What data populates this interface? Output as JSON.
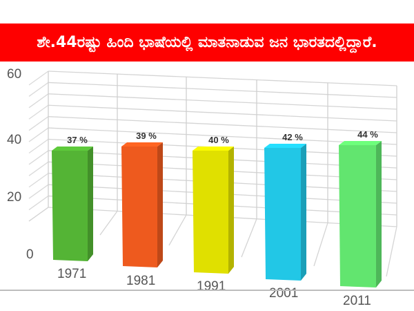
{
  "title": "ಶೇ.44ರಷ್ಟು ಹಿಂದಿ ಭಾಷೆಯಲ್ಲಿ ಮಾತನಾಡುವ ಜನ ಭಾರತದಲ್ಲಿದ್ದಾರೆ.",
  "chart_data": {
    "type": "bar",
    "title": "ಶೇ.44ರಷ್ಟು ಹಿಂದಿ ಭಾಷೆಯಲ್ಲಿ ಮಾತನಾಡುವ ಜನ ಭಾರತದಲ್ಲಿದ್ದಾರೆ.",
    "categories": [
      "1971",
      "1981",
      "1991",
      "2001",
      "2011"
    ],
    "values": [
      37,
      39,
      40,
      42,
      44
    ],
    "data_labels": [
      "37 %",
      "39 %",
      "40 %",
      "42 %",
      "44 %"
    ],
    "colors": [
      "#54b435",
      "#ee5a1e",
      "#e0e000",
      "#22c7e6",
      "#62e56f"
    ],
    "xlabel": "",
    "ylabel": "",
    "ylim": [
      0,
      60
    ],
    "yticks": [
      "0",
      "20",
      "40",
      "60"
    ],
    "grid": true,
    "style": "3d-perspective",
    "legend": null
  }
}
